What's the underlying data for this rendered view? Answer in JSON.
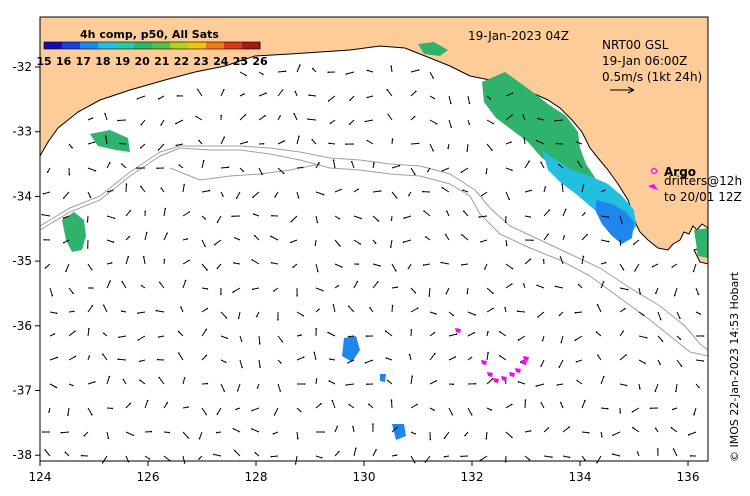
{
  "legend": {
    "title": "4h comp, p50, All Sats",
    "ticks": [
      "15",
      "16",
      "17",
      "18",
      "19",
      "20",
      "21",
      "22",
      "23",
      "24",
      "25",
      "26"
    ],
    "colors": [
      "#1a0aa8",
      "#1c3fe0",
      "#1f86ee",
      "#22bfe0",
      "#27c9a6",
      "#31b46d",
      "#55c04a",
      "#b5d11e",
      "#f1c40f",
      "#f07b13",
      "#d93a16",
      "#a21a14"
    ]
  },
  "timestamp": "19-Jan-2023 04Z",
  "current_legend": {
    "line1": "NRT00 GSL",
    "line2": "19-Jan 06:00Z",
    "line3": "0.5m/s (1kt 24h)"
  },
  "argo_legend": {
    "label": "Argo",
    "line2": "drifters@12h",
    "line3": "to 20/01 12Z"
  },
  "credit": "© IMOS 22-Jan-2023 14:53 Hobart",
  "x_axis": {
    "ticks": [
      "124",
      "126",
      "128",
      "130",
      "132",
      "134",
      "136"
    ]
  },
  "y_axis": {
    "ticks": [
      "-32",
      "-33",
      "-34",
      "-35",
      "-36",
      "-37",
      "-38"
    ]
  },
  "colors": {
    "land": "#fdcc99",
    "coastline": "#000000",
    "bathymetry": "#a0a0a0",
    "arrows": "#000000",
    "argo": "#ff00ff",
    "sst_warm": "#2fb36c",
    "sst_mid": "#22bfe0",
    "sst_cool": "#1f86ee"
  }
}
